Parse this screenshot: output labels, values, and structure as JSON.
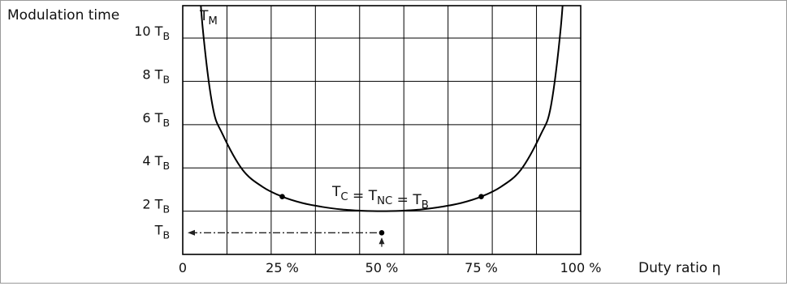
{
  "chart_data": {
    "type": "line",
    "ylabel": "Modulation time",
    "xlabel": "Duty ratio η",
    "xlim": [
      0,
      100
    ],
    "ylim": [
      0,
      11.5
    ],
    "grid": true,
    "x_ticks": [
      {
        "value": 0,
        "label": "0"
      },
      {
        "value": 25,
        "label": "25 %"
      },
      {
        "value": 50,
        "label": "50 %"
      },
      {
        "value": 75,
        "label": "75 %"
      },
      {
        "value": 100,
        "label": "100 %"
      }
    ],
    "y_ticks": [
      {
        "value": 1,
        "base": "T",
        "sub": "B"
      },
      {
        "value": 2,
        "base": "2 T",
        "sub": "B"
      },
      {
        "value": 4,
        "base": "4 T",
        "sub": "B"
      },
      {
        "value": 6,
        "base": "6 T",
        "sub": "B"
      },
      {
        "value": 8,
        "base": "8 T",
        "sub": "B"
      },
      {
        "value": 10,
        "base": "10 T",
        "sub": "B"
      }
    ],
    "series": [
      {
        "name": "T_M",
        "label_base": "T",
        "label_sub": "M",
        "x": [
          3.5,
          5,
          7.5,
          10,
          15,
          20,
          25,
          30,
          35,
          40,
          45,
          50,
          55,
          60,
          65,
          70,
          75,
          80,
          85,
          90,
          92.5,
          95,
          96.5
        ],
        "y": [
          14.5,
          10.5,
          6.85,
          5.56,
          3.92,
          3.13,
          2.67,
          2.38,
          2.2,
          2.08,
          2.02,
          2.0,
          2.02,
          2.08,
          2.2,
          2.38,
          2.67,
          3.13,
          3.92,
          5.56,
          6.85,
          10.5,
          14.5
        ]
      }
    ],
    "points": [
      {
        "x": 25,
        "y": 2.67
      },
      {
        "x": 75,
        "y": 2.67
      },
      {
        "x": 50,
        "y": 1
      }
    ],
    "annotations": [
      {
        "type": "equation",
        "parts": [
          {
            "base": "T",
            "sub": "C"
          },
          {
            "text": " = "
          },
          {
            "base": "T",
            "sub": "NC"
          },
          {
            "text": " = "
          },
          {
            "base": "T",
            "sub": "B"
          }
        ]
      },
      {
        "type": "dash-dot-arrow",
        "from_x": 50,
        "to_x": 0,
        "y": 1
      },
      {
        "type": "arrow-up",
        "x": 50,
        "from_y": 0.5,
        "to_y": 1
      }
    ],
    "colors": {
      "line": "#000000",
      "grid": "#000000",
      "background": "#ffffff"
    }
  }
}
